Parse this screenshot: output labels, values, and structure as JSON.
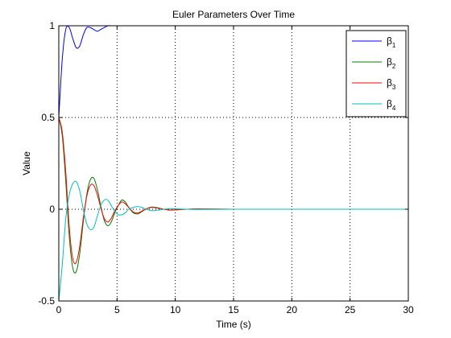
{
  "chart_data": {
    "type": "line",
    "title": "Euler Parameters Over Time",
    "xlabel": "Time (s)",
    "ylabel": "Value",
    "xlim": [
      0,
      30
    ],
    "ylim": [
      -0.5,
      1
    ],
    "xticks": [
      0,
      5,
      10,
      15,
      20,
      25,
      30
    ],
    "yticks": [
      -0.5,
      0,
      0.5,
      1
    ],
    "xtick_labels": [
      "0",
      "5",
      "10",
      "15",
      "20",
      "25",
      "30"
    ],
    "ytick_labels": [
      "-0.5",
      "0",
      "0.5",
      "1"
    ],
    "grid": true,
    "legend_position": "top-right",
    "series": [
      {
        "name": "β1",
        "name_base": "β",
        "name_sub": "1",
        "color": "#0000ff",
        "x": [
          0,
          0.3,
          0.6,
          0.9,
          1.2,
          1.5,
          1.8,
          2.1,
          2.4,
          2.7,
          3.0,
          3.3,
          3.6,
          3.9,
          4.2,
          4.5,
          5.0
        ],
        "y": [
          0.5,
          0.82,
          0.98,
          0.99,
          0.93,
          0.88,
          0.89,
          0.95,
          0.99,
          0.99,
          0.98,
          0.97,
          0.98,
          0.99,
          1.0,
          1.0,
          1.0
        ]
      },
      {
        "name": "β2",
        "name_base": "β",
        "name_sub": "2",
        "color": "#008000",
        "x": [
          0,
          0.3,
          0.6,
          0.9,
          1.2,
          1.5,
          1.8,
          2.1,
          2.4,
          2.7,
          3.0,
          3.3,
          3.6,
          3.9,
          4.2,
          4.5,
          4.8,
          5.1,
          5.4,
          5.7,
          6.0,
          6.4,
          6.8,
          7.2,
          7.6,
          8.0,
          8.5,
          9.0,
          9.5,
          10,
          11,
          12,
          15,
          20,
          25,
          30
        ],
        "y": [
          0.5,
          0.4,
          0.15,
          -0.15,
          -0.32,
          -0.34,
          -0.24,
          -0.07,
          0.08,
          0.16,
          0.17,
          0.11,
          0.02,
          -0.06,
          -0.09,
          -0.07,
          -0.02,
          0.02,
          0.05,
          0.04,
          0.01,
          -0.02,
          -0.025,
          -0.01,
          0.005,
          0.012,
          0.008,
          0.0,
          -0.005,
          -0.004,
          0.0,
          0.002,
          0.0,
          0.0,
          0.0,
          0.0
        ]
      },
      {
        "name": "β3",
        "name_base": "β",
        "name_sub": "3",
        "color": "#ff0000",
        "x": [
          0,
          0.3,
          0.6,
          0.9,
          1.2,
          1.5,
          1.8,
          2.1,
          2.4,
          2.7,
          3.0,
          3.3,
          3.6,
          3.9,
          4.2,
          4.5,
          4.8,
          5.1,
          5.4,
          5.7,
          6.0,
          6.4,
          6.8,
          7.2,
          7.6,
          8.0,
          8.5,
          9.0,
          9.5,
          10,
          11,
          12,
          15,
          20,
          25,
          30
        ],
        "y": [
          0.5,
          0.42,
          0.2,
          -0.1,
          -0.27,
          -0.29,
          -0.2,
          -0.05,
          0.07,
          0.13,
          0.13,
          0.08,
          0.01,
          -0.05,
          -0.07,
          -0.05,
          -0.01,
          0.02,
          0.04,
          0.03,
          0.01,
          -0.015,
          -0.02,
          -0.008,
          0.004,
          0.01,
          0.006,
          0.0,
          -0.004,
          -0.003,
          0.0,
          0.001,
          0.0,
          0.0,
          0.0,
          0.0
        ]
      },
      {
        "name": "β4",
        "name_base": "β",
        "name_sub": "4",
        "color": "#00bfbf",
        "x": [
          0,
          0.3,
          0.6,
          0.9,
          1.2,
          1.5,
          1.8,
          2.1,
          2.4,
          2.7,
          3.0,
          3.3,
          3.6,
          3.9,
          4.2,
          4.5,
          4.8,
          5.1,
          5.4,
          5.7,
          6.0,
          6.4,
          6.8,
          7.2,
          7.6,
          8.0,
          8.5,
          9.0,
          9.5,
          10,
          11,
          12,
          15,
          20,
          25,
          30
        ],
        "y": [
          -0.5,
          -0.3,
          -0.05,
          0.08,
          0.14,
          0.15,
          0.1,
          0.0,
          -0.08,
          -0.11,
          -0.1,
          -0.04,
          0.02,
          0.05,
          0.05,
          0.02,
          -0.01,
          -0.03,
          -0.03,
          -0.02,
          0.0,
          0.01,
          0.015,
          0.008,
          -0.002,
          -0.008,
          -0.005,
          0.0,
          0.003,
          0.002,
          0.0,
          -0.001,
          0.0,
          0.0,
          0.0,
          0.0
        ]
      }
    ]
  }
}
